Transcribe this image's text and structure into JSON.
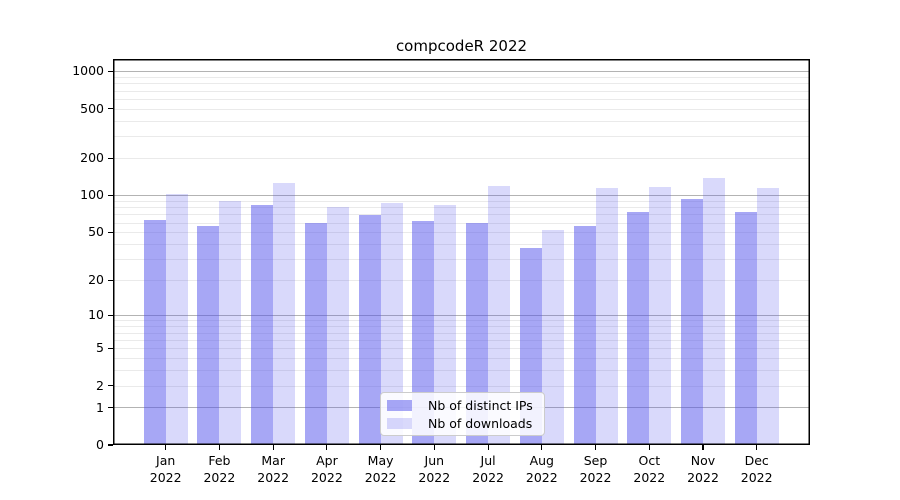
{
  "title": "compcodeR 2022",
  "colors": {
    "bar_distinct_ips": "rgba(80,80,235,0.5)",
    "bar_downloads": "rgba(80,80,235,0.22)",
    "grid_major": "#b3b3b3",
    "grid_minor": "#eaeaea",
    "axis": "#000000",
    "legend_border": "#cccccc",
    "legend_background": "rgba(255,255,255,0.85)",
    "text": "#000000"
  },
  "chart_data": {
    "type": "bar",
    "title": "compcodeR 2022",
    "categories": [
      "Jan 2022",
      "Feb 2022",
      "Mar 2022",
      "Apr 2022",
      "May 2022",
      "Jun 2022",
      "Jul 2022",
      "Aug 2022",
      "Sep 2022",
      "Oct 2022",
      "Nov 2022",
      "Dec 2022"
    ],
    "series": [
      {
        "name": "Nb of distinct IPs",
        "color": "rgba(80,80,235,0.5)",
        "values": [
          63,
          56,
          83,
          60,
          69,
          62,
          60,
          37,
          56,
          73,
          93,
          73
        ]
      },
      {
        "name": "Nb of downloads",
        "color": "rgba(80,80,235,0.22)",
        "values": [
          102,
          90,
          125,
          80,
          87,
          84,
          118,
          52,
          114,
          116,
          138,
          114
        ]
      }
    ],
    "xlabel": "",
    "ylabel": "",
    "yscale": "log1p",
    "y_ticks": [
      0,
      1,
      2,
      5,
      10,
      20,
      50,
      100,
      200,
      500,
      1000
    ],
    "y_major_gridlines": [
      1,
      10,
      100,
      1000
    ],
    "y_minor_gridlines": [
      2,
      3,
      4,
      5,
      6,
      7,
      8,
      9,
      20,
      30,
      40,
      50,
      60,
      70,
      80,
      90,
      200,
      300,
      400,
      500,
      600,
      700,
      800,
      900
    ],
    "ylim": [
      0,
      1240
    ],
    "grid": true,
    "legend_position": "lower-center"
  }
}
